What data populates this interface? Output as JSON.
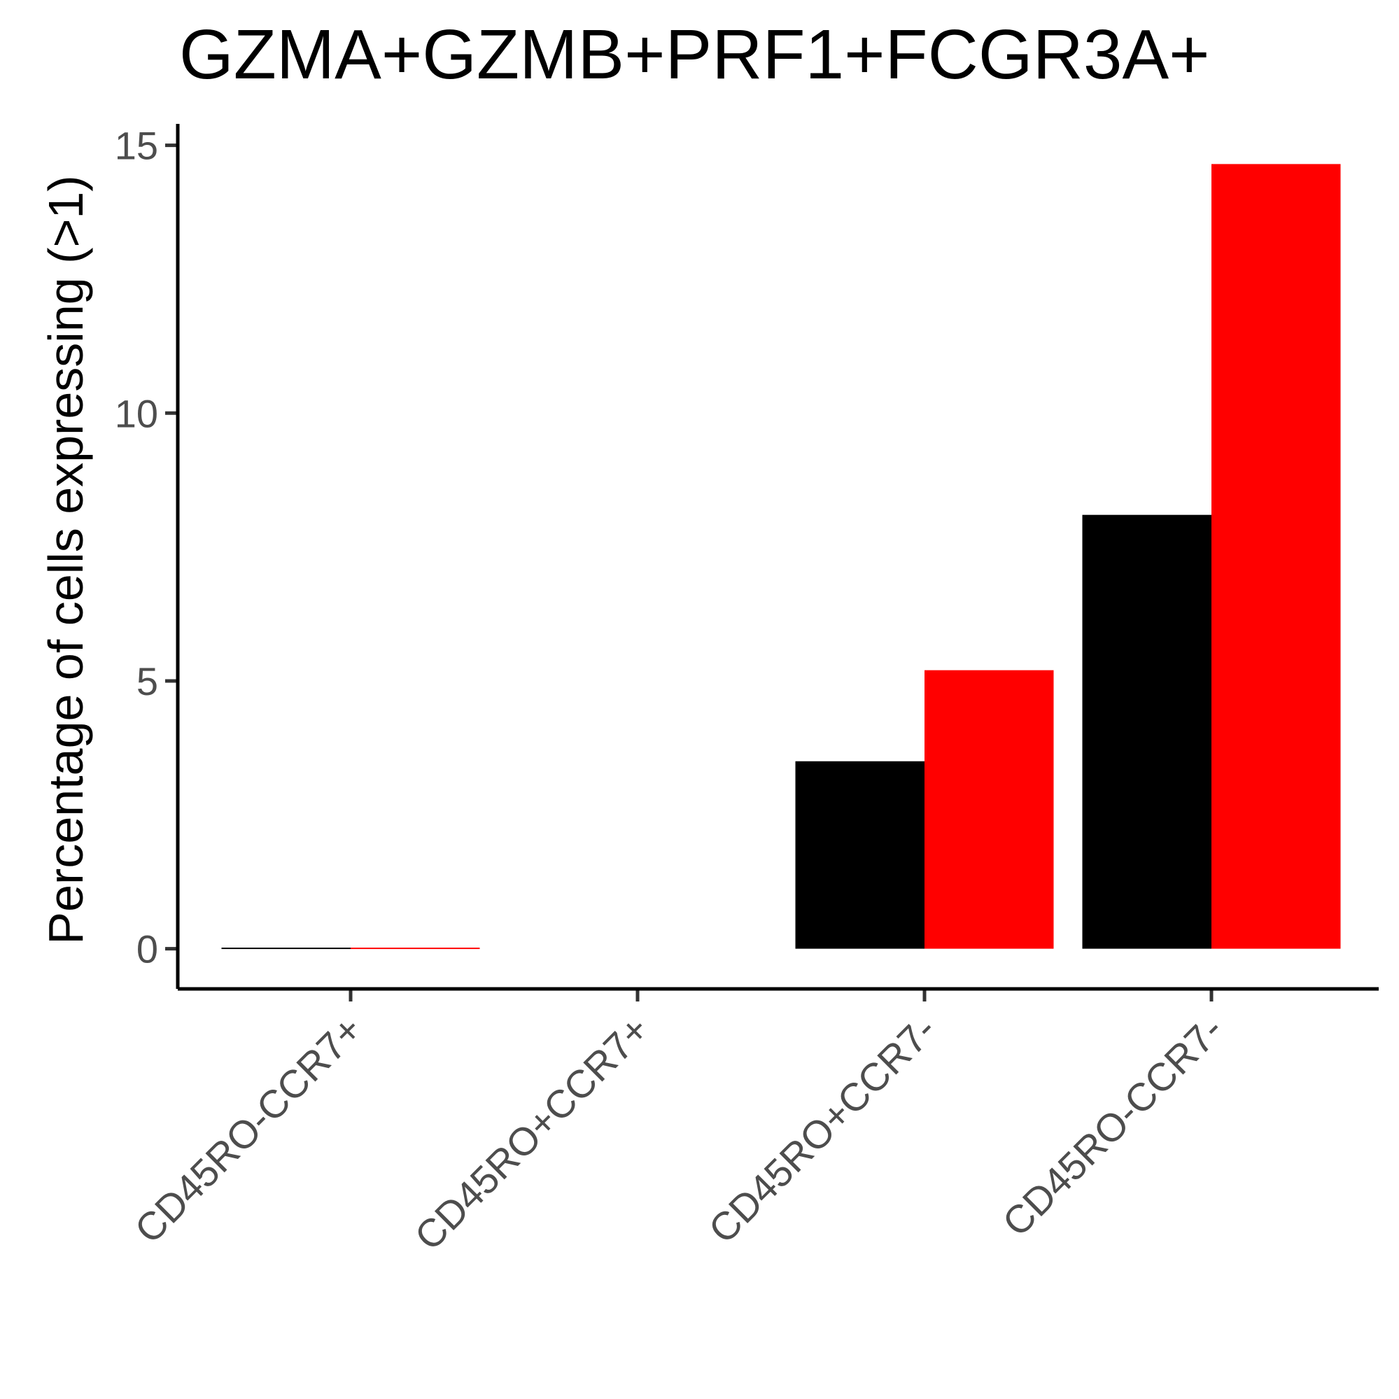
{
  "chart_data": {
    "type": "bar",
    "title": "GZMA+GZMB+PRF1+FCGR3A+",
    "xlabel": "",
    "ylabel": "Percentage of cells expressing (>1)",
    "categories": [
      "CD45RO-CCR7+",
      "CD45RO+CCR7+",
      "CD45RO+CCR7-",
      "CD45RO-CCR7-"
    ],
    "series": [
      {
        "color": "#000000",
        "values": [
          0.02,
          0.0,
          3.5,
          8.1
        ]
      },
      {
        "color": "#ff0000",
        "values": [
          0.02,
          0.0,
          5.2,
          14.65
        ]
      }
    ],
    "ylim": [
      -0.75,
      15.4
    ],
    "yticks": [
      "0",
      "5",
      "10",
      "15"
    ],
    "ytick_values": [
      0,
      5,
      10,
      15
    ],
    "grid": false,
    "legend": "none"
  }
}
